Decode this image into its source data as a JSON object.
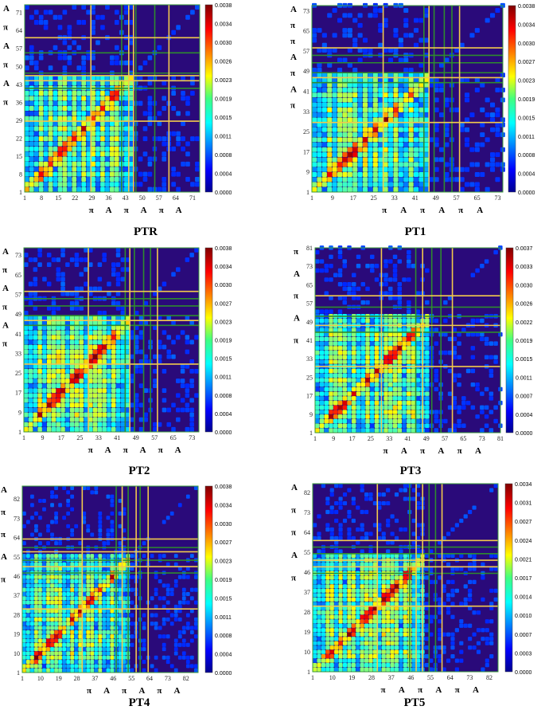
{
  "figure": {
    "panels": [
      {
        "title": "PTR",
        "n": 74,
        "ticks": [
          "1",
          "8",
          "15",
          "22",
          "29",
          "36",
          "43",
          "50",
          "57",
          "64",
          "71"
        ],
        "colorbar": [
          "0.0038",
          "0.0034",
          "0.0030",
          "0.0026",
          "0.0023",
          "0.0019",
          "0.0015",
          "0.0011",
          "0.0008",
          "0.0004",
          "0.0000"
        ],
        "y_side": [
          "A",
          "π",
          "A",
          "π",
          "A",
          "π"
        ],
        "x_side": [
          "π",
          "A",
          "π",
          "A",
          "π",
          "A"
        ]
      },
      {
        "title": "PT1",
        "n": 75,
        "ticks": [
          "1",
          "9",
          "17",
          "25",
          "33",
          "41",
          "49",
          "57",
          "65",
          "73"
        ],
        "colorbar": [
          "0.0038",
          "0.0034",
          "0.0030",
          "0.0027",
          "0.0023",
          "0.0019",
          "0.0015",
          "0.0011",
          "0.0008",
          "0.0004",
          "0.0000"
        ],
        "y_side": [
          "A",
          "π",
          "π",
          "A",
          "π",
          "A",
          "π"
        ],
        "x_side": [
          "π",
          "A",
          "π",
          "A",
          "π",
          "A"
        ]
      },
      {
        "title": "PT2",
        "n": 76,
        "ticks": [
          "1",
          "9",
          "17",
          "25",
          "33",
          "41",
          "49",
          "57",
          "65",
          "73"
        ],
        "colorbar": [
          "0.0038",
          "0.0034",
          "0.0030",
          "0.0027",
          "0.0023",
          "0.0019",
          "0.0015",
          "0.0011",
          "0.0008",
          "0.0004",
          "0.0000"
        ],
        "y_side": [
          "A",
          "π",
          "A",
          "π",
          "A",
          "π"
        ],
        "x_side": [
          "π",
          "A",
          "π",
          "A",
          "π",
          "A"
        ]
      },
      {
        "title": "PT3",
        "n": 81,
        "ticks": [
          "1",
          "9",
          "17",
          "25",
          "33",
          "41",
          "49",
          "57",
          "65",
          "73",
          "81"
        ],
        "colorbar": [
          "0.0037",
          "0.0033",
          "0.0030",
          "0.0026",
          "0.0022",
          "0.0019",
          "0.0015",
          "0.0011",
          "0.0007",
          "0.0004",
          "0.0000"
        ],
        "y_side": [
          "π",
          "A",
          "π",
          "A",
          "π"
        ],
        "x_side": [
          "π",
          "A",
          "π",
          "A",
          "π",
          "A"
        ]
      },
      {
        "title": "PT4",
        "n": 88,
        "ticks": [
          "1",
          "10",
          "19",
          "28",
          "37",
          "46",
          "55",
          "64",
          "73",
          "82"
        ],
        "colorbar": [
          "0.0038",
          "0.0034",
          "0.0030",
          "0.0027",
          "0.0023",
          "0.0019",
          "0.0015",
          "0.0011",
          "0.0008",
          "0.0004",
          "0.0000"
        ],
        "y_side": [
          "A",
          "π",
          "π",
          "A",
          "π"
        ],
        "x_side": [
          "π",
          "A",
          "π",
          "A",
          "π",
          "A"
        ]
      },
      {
        "title": "PT5",
        "n": 86,
        "ticks": [
          "1",
          "10",
          "19",
          "28",
          "37",
          "46",
          "55",
          "64",
          "73",
          "82"
        ],
        "colorbar": [
          "0.0034",
          "0.0031",
          "0.0027",
          "0.0024",
          "0.0021",
          "0.0017",
          "0.0014",
          "0.0010",
          "0.0007",
          "0.0003",
          "0.0000"
        ],
        "y_side": [
          "A",
          "π",
          "π",
          "A",
          "π"
        ],
        "x_side": [
          "π",
          "A",
          "π",
          "A",
          "π",
          "A"
        ]
      }
    ]
  },
  "chart_data": [
    {
      "type": "heatmap",
      "title": "PTR",
      "size": 74,
      "vmin": 0.0,
      "vmax": 0.0038,
      "colormap": "jet",
      "boundary_lines": {
        "yellow": [
          29,
          45,
          47,
          62
        ],
        "green": [
          42,
          48,
          56
        ]
      }
    },
    {
      "type": "heatmap",
      "title": "PT1",
      "size": 75,
      "vmin": 0.0,
      "vmax": 0.0038,
      "colormap": "jet",
      "boundary_lines": {
        "yellow": [
          29,
          47,
          59
        ],
        "green": [
          45,
          49,
          53,
          56
        ]
      }
    },
    {
      "type": "heatmap",
      "title": "PT2",
      "size": 76,
      "vmin": 0.0,
      "vmax": 0.0038,
      "colormap": "jet",
      "boundary_lines": {
        "yellow": [
          29,
          47,
          59
        ],
        "green": [
          45,
          49,
          53,
          56
        ]
      }
    },
    {
      "type": "heatmap",
      "title": "PT3",
      "size": 81,
      "vmin": 0.0,
      "vmax": 0.0037,
      "colormap": "jet",
      "boundary_lines": {
        "yellow": [
          30,
          48,
          61
        ],
        "green": [
          45,
          52,
          56
        ]
      }
    },
    {
      "type": "heatmap",
      "title": "PT4",
      "size": 88,
      "vmin": 0.0,
      "vmax": 0.0038,
      "colormap": "jet",
      "boundary_lines": {
        "yellow": [
          31,
          51,
          58,
          64
        ],
        "green": [
          48,
          54,
          60
        ]
      }
    },
    {
      "type": "heatmap",
      "title": "PT5",
      "size": 86,
      "vmin": 0.0,
      "vmax": 0.0034,
      "colormap": "jet",
      "boundary_lines": {
        "yellow": [
          31,
          49,
          52,
          61
        ],
        "green": [
          46,
          55,
          58
        ]
      }
    }
  ]
}
